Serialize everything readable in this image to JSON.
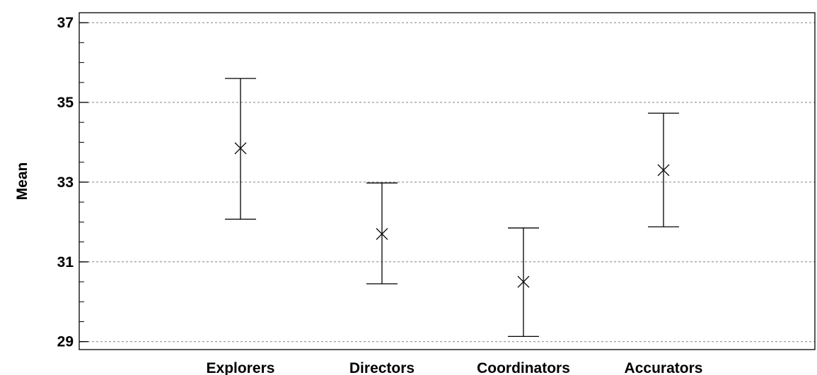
{
  "chart_data": {
    "type": "scatter",
    "title": "",
    "xlabel": "",
    "ylabel": "Mean",
    "categories": [
      "Explorers",
      "Directors",
      "Coordinators",
      "Accurators"
    ],
    "series": [
      {
        "means": [
          33.85,
          31.7,
          30.5,
          33.3
        ],
        "lower": [
          32.07,
          30.45,
          29.13,
          31.88
        ],
        "upper": [
          35.6,
          32.98,
          31.85,
          34.73
        ]
      }
    ],
    "ylim": [
      28.8,
      37.25
    ],
    "yticks": [
      29,
      31,
      33,
      35,
      37
    ],
    "yticks_minor_step": 0.5,
    "grid": "horizontal dashed at major ticks",
    "marker": "x",
    "legend": "none",
    "colors": {
      "line": "#000000",
      "grid": "#808080",
      "background": "#ffffff"
    }
  }
}
